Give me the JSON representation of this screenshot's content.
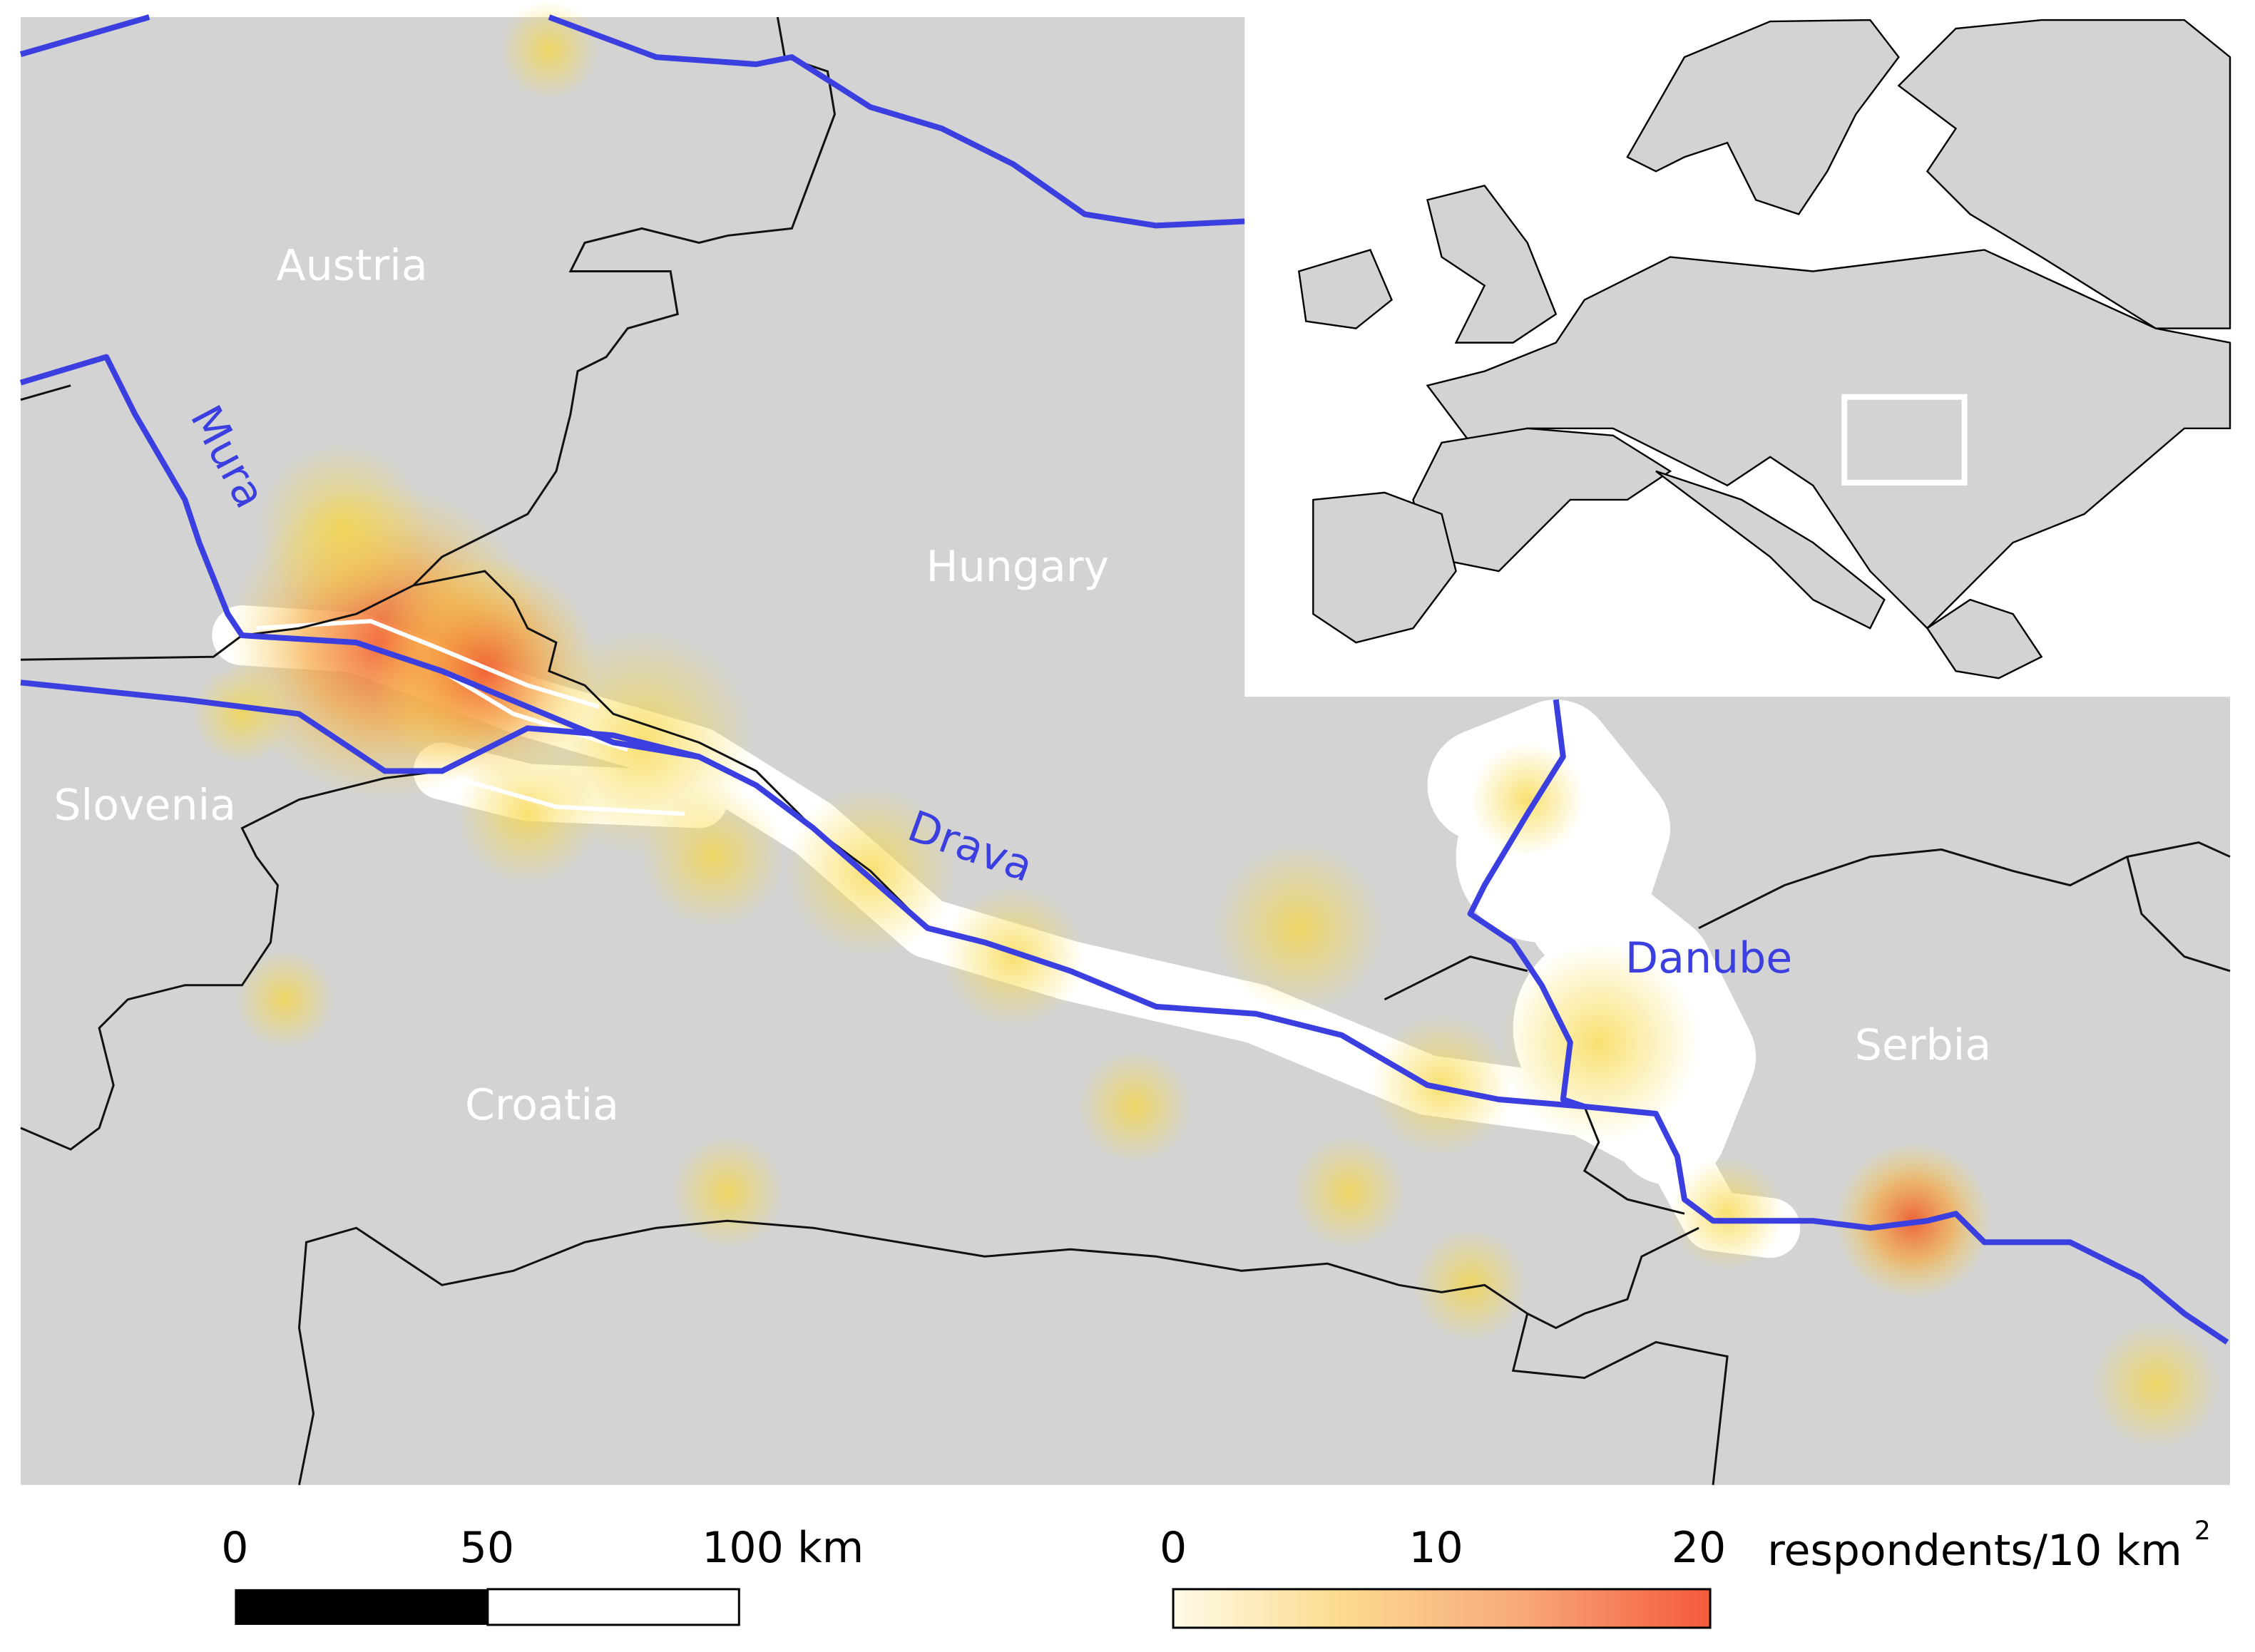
{
  "map": {
    "countries": [
      "Austria",
      "Hungary",
      "Slovenia",
      "Croatia",
      "Serbia"
    ],
    "rivers": [
      "Mura",
      "Drava",
      "Danube"
    ],
    "scale_bar": {
      "ticks": [
        0,
        50,
        {
          "value": 100,
          "label": "100 km"
        }
      ]
    },
    "density_legend": {
      "ticks": [
        0,
        10,
        20
      ],
      "unit": "respondents/10 km",
      "unit_superscript": "2"
    }
  }
}
